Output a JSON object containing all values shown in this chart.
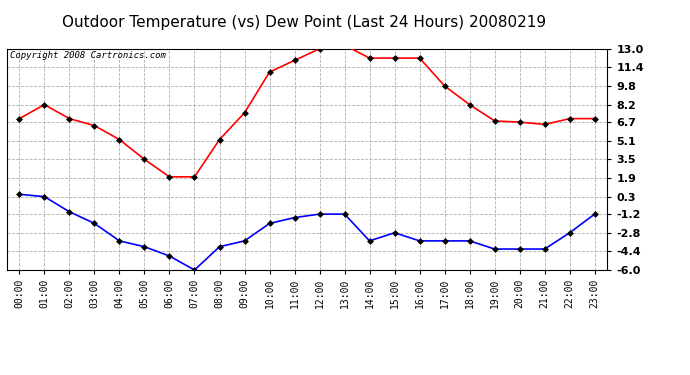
{
  "title": "Outdoor Temperature (vs) Dew Point (Last 24 Hours) 20080219",
  "copyright_text": "Copyright 2008 Cartronics.com",
  "hours": [
    "00:00",
    "01:00",
    "02:00",
    "03:00",
    "04:00",
    "05:00",
    "06:00",
    "07:00",
    "08:00",
    "09:00",
    "10:00",
    "11:00",
    "12:00",
    "13:00",
    "14:00",
    "15:00",
    "16:00",
    "17:00",
    "18:00",
    "19:00",
    "20:00",
    "21:00",
    "22:00",
    "23:00"
  ],
  "temp_red": [
    7.0,
    8.2,
    7.0,
    6.4,
    5.2,
    3.5,
    2.0,
    2.0,
    5.2,
    7.5,
    11.0,
    12.0,
    13.0,
    13.3,
    12.2,
    12.2,
    12.2,
    9.8,
    8.2,
    6.8,
    6.7,
    6.5,
    7.0,
    7.0
  ],
  "dew_blue": [
    0.5,
    0.3,
    -1.0,
    -2.0,
    -3.5,
    -4.0,
    -4.8,
    -6.0,
    -4.0,
    -3.5,
    -2.0,
    -1.5,
    -1.2,
    -1.2,
    -3.5,
    -2.8,
    -3.5,
    -3.5,
    -3.5,
    -4.2,
    -4.2,
    -4.2,
    -2.8,
    -1.2
  ],
  "ylim_min": -6.0,
  "ylim_max": 13.0,
  "yticks": [
    13.0,
    11.4,
    9.8,
    8.2,
    6.7,
    5.1,
    3.5,
    1.9,
    0.3,
    -1.2,
    -2.8,
    -4.4,
    -6.0
  ],
  "red_color": "#ff0000",
  "blue_color": "#0000ff",
  "bg_color": "#ffffff",
  "plot_bg": "#ffffff",
  "grid_color": "#b0b0b0",
  "title_fontsize": 11,
  "copyright_fontsize": 6.5
}
